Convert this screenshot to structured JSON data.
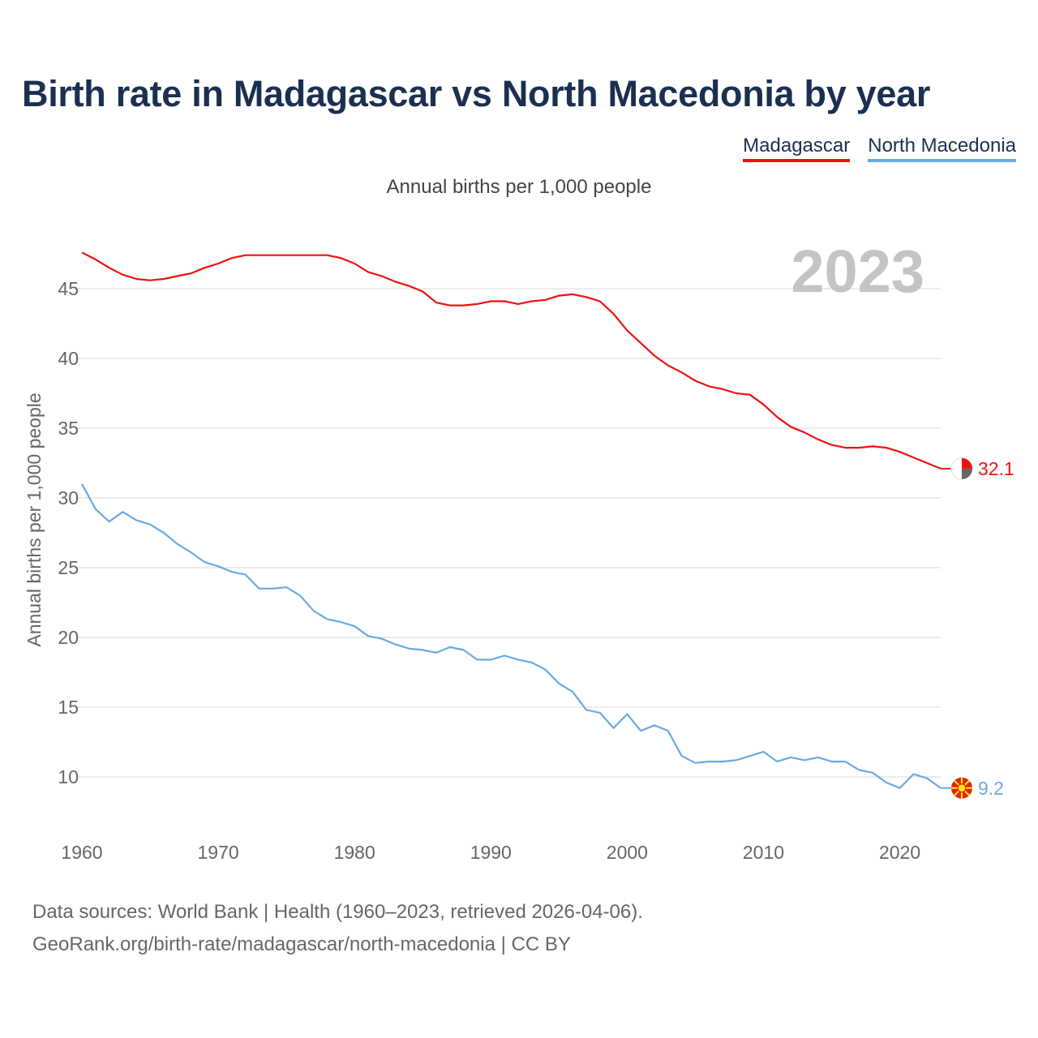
{
  "title": "Birth rate in Madagascar vs North Macedonia by year",
  "legend": {
    "madagascar": "Madagascar",
    "north_macedonia": "North Macedonia"
  },
  "subtitle": "Annual births per 1,000 people",
  "colors": {
    "madagascar": "#ee1111",
    "north_macedonia": "#6aaae4",
    "year_watermark": "#c4c4c4",
    "grid": "#e6e6e6",
    "axis_text": "#666666"
  },
  "chart_data": {
    "type": "line",
    "title": "Birth rate in Madagascar vs North Macedonia by year",
    "ylabel": "Annual births per 1,000 people",
    "xlabel": "",
    "year_label": "2023",
    "xlim": [
      1960,
      2023
    ],
    "ylim": [
      7,
      48.5
    ],
    "xticks": [
      1960,
      1970,
      1980,
      1990,
      2000,
      2010,
      2020
    ],
    "yticks": [
      10,
      15,
      20,
      25,
      30,
      35,
      40,
      45
    ],
    "x": [
      1960,
      1961,
      1962,
      1963,
      1964,
      1965,
      1966,
      1967,
      1968,
      1969,
      1970,
      1971,
      1972,
      1973,
      1974,
      1975,
      1976,
      1977,
      1978,
      1979,
      1980,
      1981,
      1982,
      1983,
      1984,
      1985,
      1986,
      1987,
      1988,
      1989,
      1990,
      1991,
      1992,
      1993,
      1994,
      1995,
      1996,
      1997,
      1998,
      1999,
      2000,
      2001,
      2002,
      2003,
      2004,
      2005,
      2006,
      2007,
      2008,
      2009,
      2010,
      2011,
      2012,
      2013,
      2014,
      2015,
      2016,
      2017,
      2018,
      2019,
      2020,
      2021,
      2022,
      2023
    ],
    "series": [
      {
        "name": "Madagascar",
        "color": "#ee1111",
        "end_label": "32.1",
        "values": [
          47.6,
          47.1,
          46.5,
          46.0,
          45.7,
          45.6,
          45.7,
          45.9,
          46.1,
          46.5,
          46.8,
          47.2,
          47.4,
          47.4,
          47.4,
          47.4,
          47.4,
          47.4,
          47.4,
          47.2,
          46.8,
          46.2,
          45.9,
          45.5,
          45.2,
          44.8,
          44.0,
          43.8,
          43.8,
          43.9,
          44.1,
          44.1,
          43.9,
          44.1,
          44.2,
          44.5,
          44.6,
          44.4,
          44.1,
          43.2,
          42.0,
          41.1,
          40.2,
          39.5,
          39.0,
          38.4,
          38.0,
          37.8,
          37.5,
          37.4,
          36.7,
          35.8,
          35.1,
          34.7,
          34.2,
          33.8,
          33.6,
          33.6,
          33.7,
          33.6,
          33.3,
          32.9,
          32.5,
          32.1
        ]
      },
      {
        "name": "North Macedonia",
        "color": "#6aaae4",
        "end_label": "9.2",
        "values": [
          31.0,
          29.2,
          28.3,
          29.0,
          28.4,
          28.1,
          27.5,
          26.7,
          26.1,
          25.4,
          25.1,
          24.7,
          24.5,
          23.5,
          23.5,
          23.6,
          23.0,
          21.9,
          21.3,
          21.1,
          20.8,
          20.1,
          19.9,
          19.5,
          19.2,
          19.1,
          18.9,
          19.3,
          19.1,
          18.4,
          18.4,
          18.7,
          18.4,
          18.2,
          17.7,
          16.7,
          16.1,
          14.8,
          14.6,
          13.5,
          14.5,
          13.3,
          13.7,
          13.3,
          11.5,
          11.0,
          11.1,
          11.1,
          11.2,
          11.5,
          11.8,
          11.1,
          11.4,
          11.2,
          11.4,
          11.1,
          11.1,
          10.5,
          10.3,
          9.6,
          9.2,
          10.2,
          9.9,
          9.2
        ]
      }
    ]
  },
  "footer": {
    "source_line": "Data sources: World Bank | Health (1960–2023, retrieved 2026-04-06).",
    "credit_line": "GeoRank.org/birth-rate/madagascar/north-macedonia | CC BY"
  }
}
